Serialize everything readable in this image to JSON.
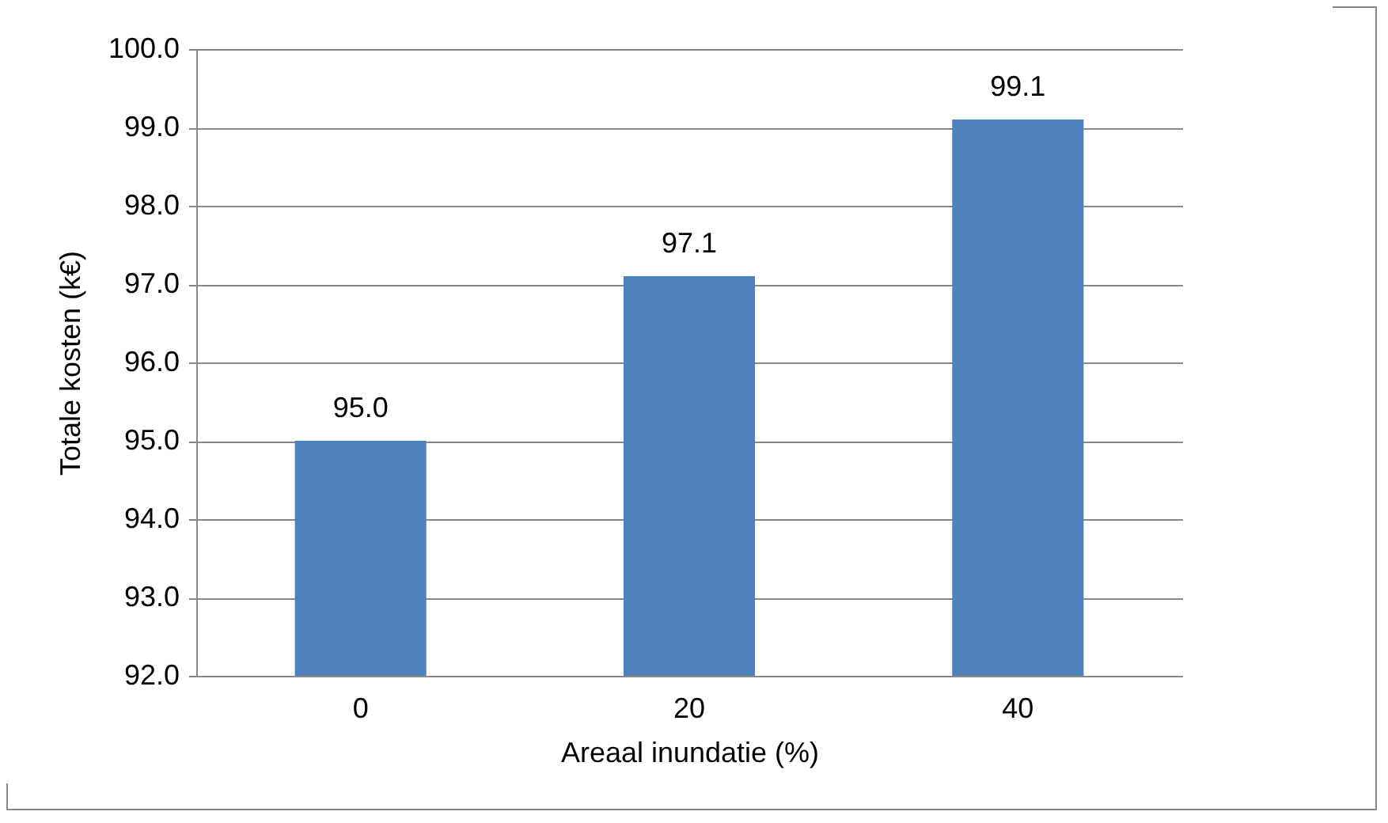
{
  "chart_data": {
    "type": "bar",
    "xlabel": "Areaal inundatie (%)",
    "ylabel": "Totale kosten (k€)",
    "categories": [
      "0",
      "20",
      "40"
    ],
    "values": [
      95.0,
      97.1,
      99.1
    ],
    "value_labels": [
      "95.0",
      "97.1",
      "99.1"
    ],
    "color": "#4f81bd",
    "ylim": [
      92,
      100
    ],
    "yticks": [
      {
        "value": 92,
        "label": "92.0"
      },
      {
        "value": 93,
        "label": "93.0"
      },
      {
        "value": 94,
        "label": "94.0"
      },
      {
        "value": 95,
        "label": "95.0"
      },
      {
        "value": 96,
        "label": "96.0"
      },
      {
        "value": 97,
        "label": "97.0"
      },
      {
        "value": 98,
        "label": "98.0"
      },
      {
        "value": 99,
        "label": "99.0"
      },
      {
        "value": 100,
        "label": "100.0"
      }
    ],
    "grid": "y"
  }
}
